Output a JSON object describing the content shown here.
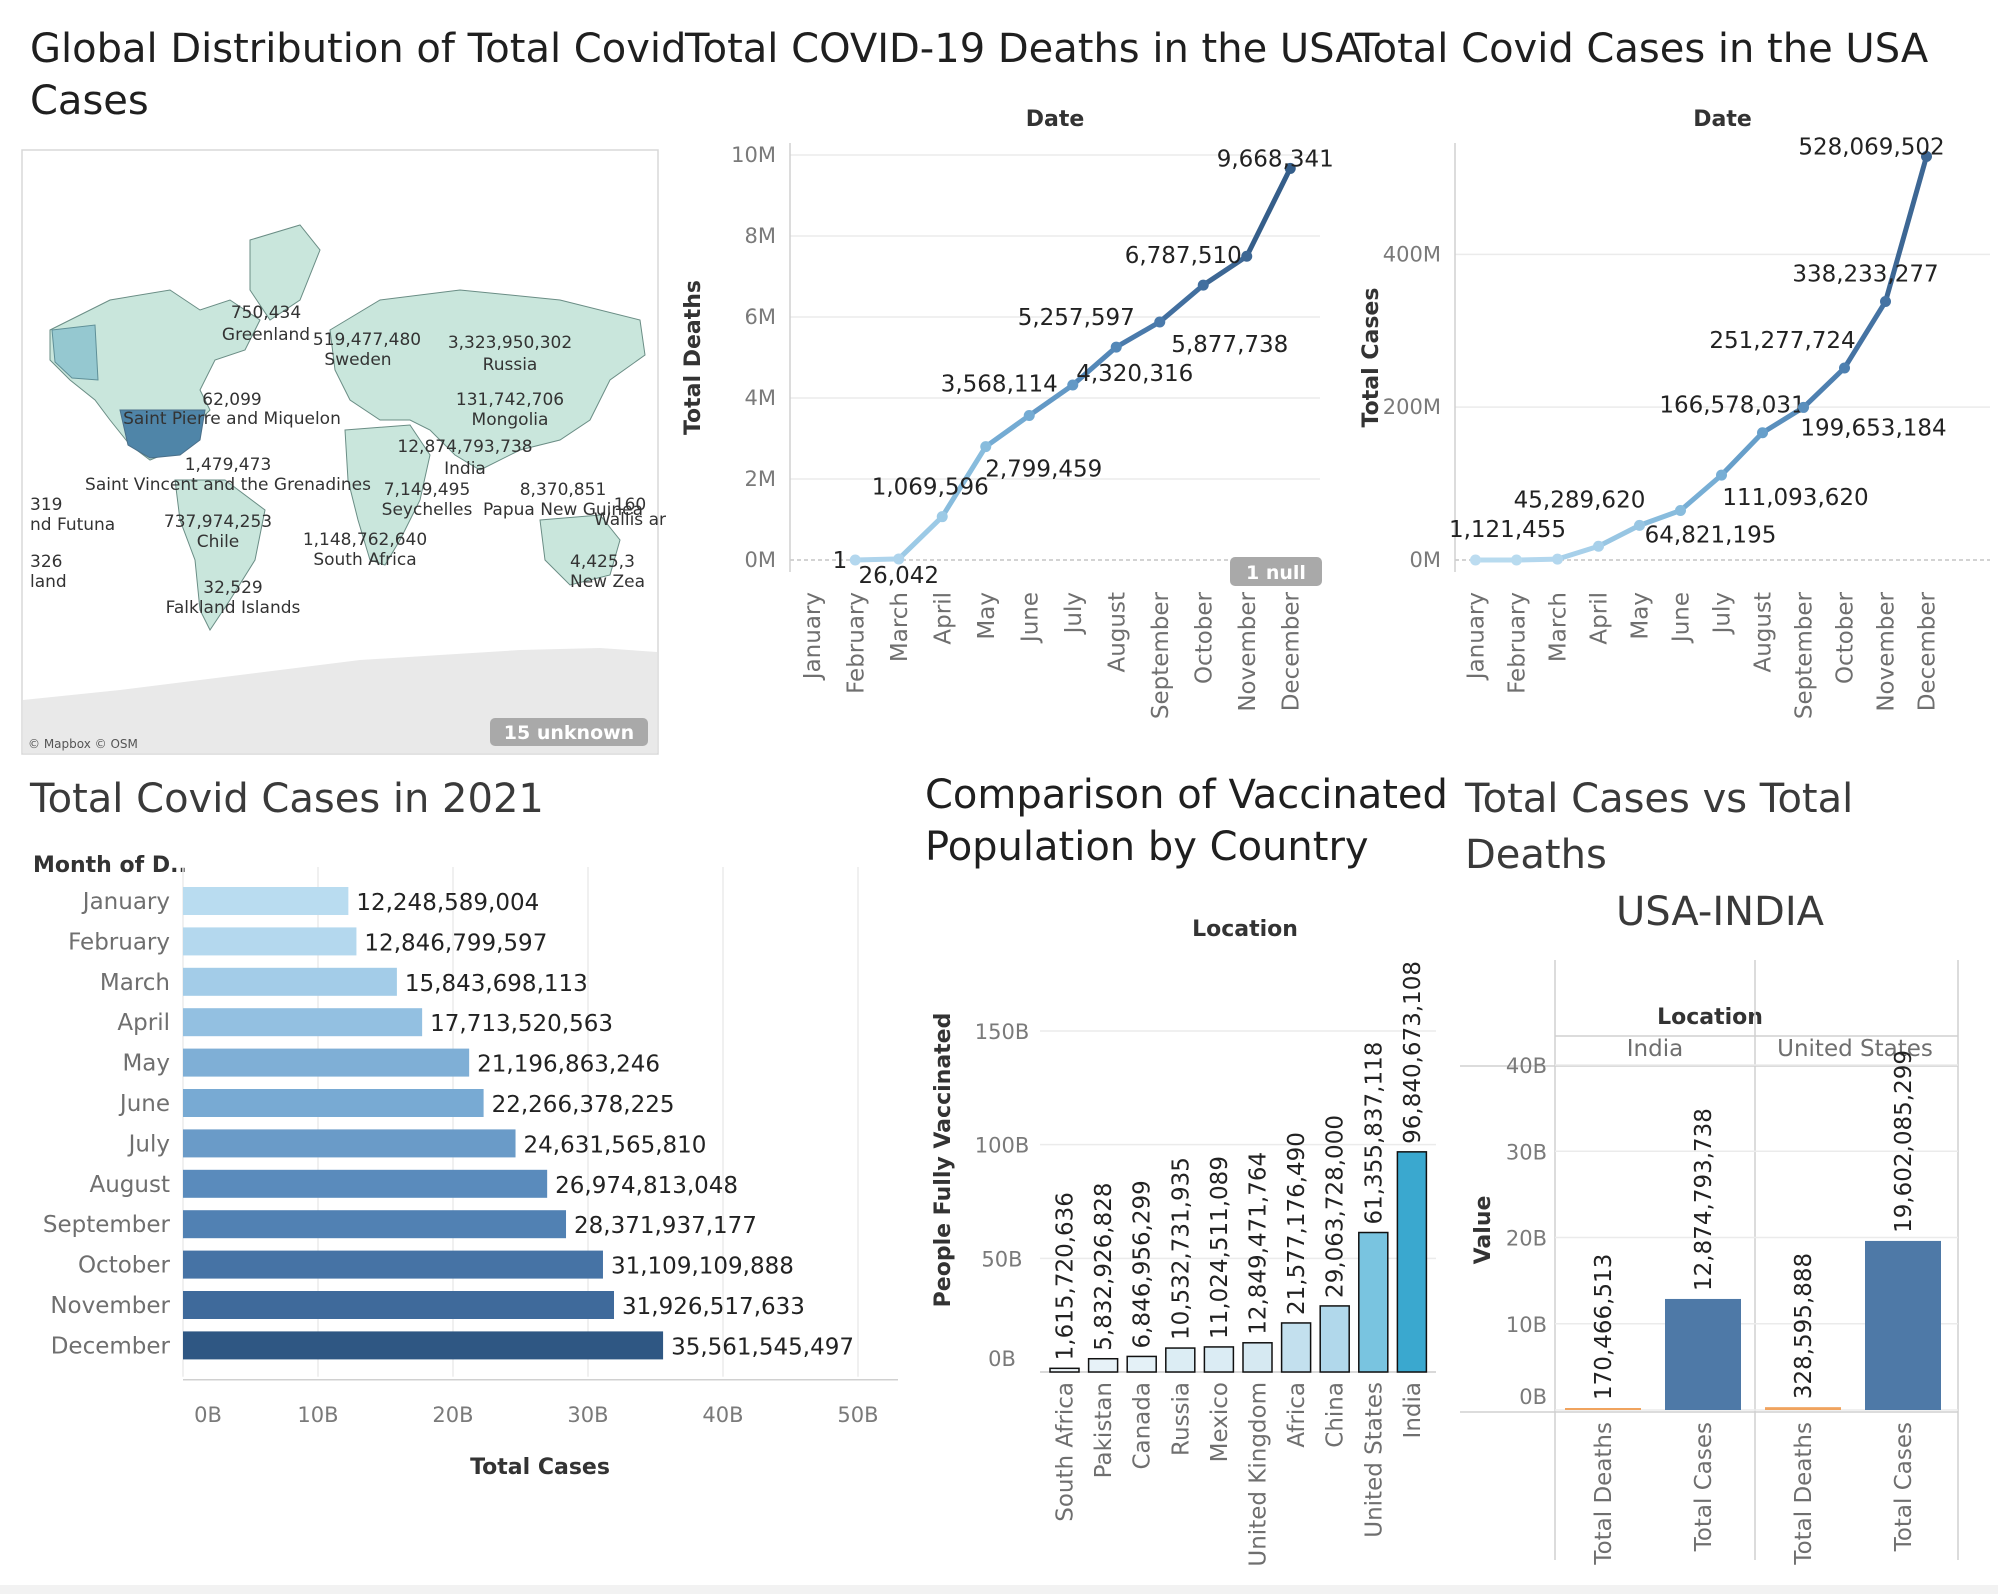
{
  "panels": {
    "map": {
      "title_line1": "Global Distribution of Total Covid",
      "title_line2": "Cases",
      "labels": [
        {
          "value": "750,434",
          "name": "Greenland"
        },
        {
          "value": "519,477,480",
          "name": "Sweden"
        },
        {
          "value": "3,323,950,302",
          "name": "Russia"
        },
        {
          "value": "62,099",
          "name": "Saint Pierre and Miquelon"
        },
        {
          "value": "131,742,706",
          "name": "Mongolia"
        },
        {
          "value": "12,874,793,738",
          "name": "India"
        },
        {
          "value": "1,479,473",
          "name": "Saint Vincent and the Grenadines"
        },
        {
          "value": "7,149,495",
          "name": "Seychelles"
        },
        {
          "value": "8,370,851",
          "name": "Papua New Guinea"
        },
        {
          "value": "160",
          "name": "Wallis ar"
        },
        {
          "value": "319",
          "name": "nd Futuna"
        },
        {
          "value": "737,974,253",
          "name": "Chile"
        },
        {
          "value": "1,148,762,640",
          "name": "South Africa"
        },
        {
          "value": "326",
          "name": "land"
        },
        {
          "value": "4,425,3",
          "name": "New Zea"
        },
        {
          "value": "32,529",
          "name": "Falkland Islands"
        }
      ],
      "attribution": "© Mapbox © OSM",
      "unknown_badge": "15 unknown"
    },
    "deaths": {
      "title": "Total COVID-19 Deaths in the USA",
      "null_badge": "1 null"
    },
    "cases": {
      "title": "Total Covid Cases in the USA"
    },
    "cases2021": {
      "title": "Total Covid Cases in 2021"
    },
    "vaccinated": {
      "title_line1": "Comparison of Vaccinated",
      "title_line2": "Population by Country"
    },
    "casesdeaths": {
      "title_line1": "Total Cases vs Total",
      "title_line2": "Deaths",
      "subtitle": "USA-INDIA"
    }
  },
  "chart_data": [
    {
      "id": "deaths",
      "type": "line",
      "title": "Total COVID-19 Deaths in the USA",
      "header": "Date",
      "xlabel": "",
      "ylabel": "Total Deaths",
      "categories": [
        "January",
        "February",
        "March",
        "April",
        "May",
        "June",
        "July",
        "August",
        "September",
        "October",
        "November",
        "December"
      ],
      "values": [
        null,
        1,
        26042,
        1069596,
        2799459,
        3568114,
        4320316,
        5257597,
        5877738,
        6787510,
        7500000,
        9668341
      ],
      "labels": [
        "",
        "1",
        "26,042",
        "1,069,596",
        "2,799,459",
        "3,568,114",
        "4,320,316",
        "5,257,597",
        "5,877,738",
        "6,787,510",
        "",
        "9,668,341"
      ],
      "yticks": [
        "0M",
        "2M",
        "4M",
        "6M",
        "8M",
        "10M"
      ],
      "ylim": [
        0,
        10000000
      ],
      "colors": [
        "#b3d7ee",
        "#b3d7ee",
        "#aed4ec",
        "#9ccae6",
        "#88bcdd",
        "#74abd3",
        "#6399c6",
        "#5488b8",
        "#4a7aab",
        "#426f9f",
        "#3d6794",
        "#355e8a"
      ]
    },
    {
      "id": "cases",
      "type": "line",
      "title": "Total Covid Cases in the USA",
      "header": "Date",
      "xlabel": "",
      "ylabel": "Total Cases",
      "categories": [
        "January",
        "February",
        "March",
        "April",
        "May",
        "June",
        "July",
        "August",
        "September",
        "October",
        "November",
        "December"
      ],
      "values": [
        0,
        0,
        1121455,
        18000000,
        45289620,
        64821195,
        111093620,
        166578031,
        199653184,
        251277724,
        338233277,
        528069502
      ],
      "labels": [
        "",
        "",
        "1,121,455",
        "",
        "45,289,620",
        "64,821,195",
        "111,093,620",
        "166,578,031",
        "199,653,184",
        "251,277,724",
        "338,233,277",
        "528,069,502"
      ],
      "yticks": [
        "0M",
        "200M",
        "400M"
      ],
      "ylim": [
        0,
        530000000
      ],
      "colors": [
        "#bcdcf0",
        "#b8dbef",
        "#b3d7ee",
        "#a7d0ea",
        "#98c6e3",
        "#88bcdd",
        "#77aed5",
        "#679fca",
        "#5a8fbd",
        "#4e80b0",
        "#4573a3",
        "#3d6794"
      ]
    },
    {
      "id": "cases2021",
      "type": "bar",
      "orientation": "horizontal",
      "title": "Total Covid Cases in 2021",
      "header": "Month of D..",
      "xlabel": "Total Cases",
      "ylabel": "",
      "categories": [
        "January",
        "February",
        "March",
        "April",
        "May",
        "June",
        "July",
        "August",
        "September",
        "October",
        "November",
        "December"
      ],
      "values": [
        12248589004,
        12846799597,
        15843698113,
        17713520563,
        21196863246,
        22266378225,
        24631565810,
        26974813048,
        28371937177,
        31109109888,
        31926517633,
        35561545497
      ],
      "labels": [
        "12,248,589,004",
        "12,846,799,597",
        "15,843,698,113",
        "17,713,520,563",
        "21,196,863,246",
        "22,266,378,225",
        "24,631,565,810",
        "26,974,813,048",
        "28,371,937,177",
        "31,109,109,888",
        "31,926,517,633",
        "35,561,545,497"
      ],
      "xticks": [
        "0B",
        "10B",
        "20B",
        "30B",
        "40B",
        "50B"
      ],
      "xlim": [
        0,
        50000000000
      ],
      "colors": [
        "#b9dcf0",
        "#b4d8ee",
        "#a3cce8",
        "#93c0e1",
        "#7fafd6",
        "#78aad3",
        "#6a9bc8",
        "#5a8bbc",
        "#5181b3",
        "#4673a5",
        "#3f6a9b",
        "#2f5783"
      ]
    },
    {
      "id": "vaccinated",
      "type": "bar",
      "orientation": "vertical",
      "title": "Comparison of Vaccinated Population by Country",
      "header": "Location",
      "xlabel": "",
      "ylabel": "People Fully Vaccinated",
      "categories": [
        "South Africa",
        "Pakistan",
        "Canada",
        "Russia",
        "Mexico",
        "United Kingdom",
        "Africa",
        "China",
        "United States",
        "India"
      ],
      "values": [
        1615720636,
        5832926828,
        6846956299,
        10532731935,
        11024511089,
        12849471764,
        21577176490,
        29063728000,
        61355837118,
        96840673108
      ],
      "labels": [
        "1,615,720,636",
        "5,832,926,828",
        "6,846,956,299",
        "10,532,731,935",
        "11,024,511,089",
        "12,849,471,764",
        "21,577,176,490",
        "29,063,728,000",
        "61,355,837,118",
        "96,840,673,108"
      ],
      "yticks": [
        "0B",
        "50B",
        "100B",
        "150B"
      ],
      "ylim": [
        0,
        150000000000
      ],
      "colors": [
        "#eef6fa",
        "#e7f2f8",
        "#e4f1f7",
        "#dcedf4",
        "#dbecf4",
        "#d6e9f2",
        "#c3e0ee",
        "#b1d8eb",
        "#79c4e0",
        "#3aa8cf"
      ]
    },
    {
      "id": "casesdeaths",
      "type": "bar",
      "orientation": "vertical",
      "title": "Total Cases vs Total Deaths",
      "subtitle": "USA-INDIA",
      "header": "Location",
      "xlabel": "",
      "ylabel": "Value",
      "groups": [
        "India",
        "United States"
      ],
      "categories": [
        "Total Deaths",
        "Total Cases"
      ],
      "series": [
        {
          "group": "India",
          "values": [
            170466513,
            12874793738
          ],
          "labels": [
            "170,466,513",
            "12,874,793,738"
          ]
        },
        {
          "group": "United States",
          "values": [
            328595888,
            19602085299
          ],
          "labels": [
            "328,595,888",
            "19,602,085,299"
          ]
        }
      ],
      "yticks": [
        "0B",
        "10B",
        "20B",
        "30B",
        "40B"
      ],
      "ylim": [
        0,
        40000000000
      ],
      "colors": {
        "Total Deaths": "#f0a35e",
        "Total Cases": "#4e79a7"
      }
    }
  ]
}
